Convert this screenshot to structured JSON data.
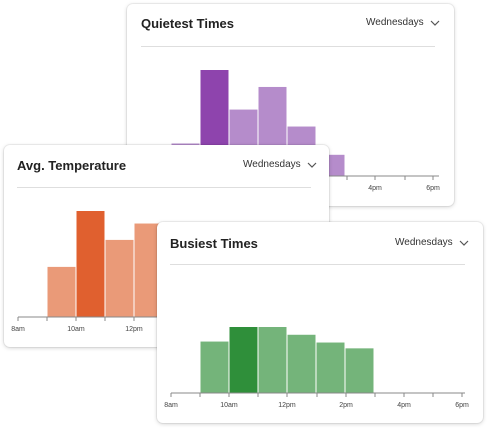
{
  "cards": {
    "quiet": {
      "title": "Quietest Times",
      "dropdown": "Wednesdays",
      "accent": "#8e44ad",
      "base": "#b58ccb"
    },
    "temp": {
      "title": "Avg. Temperature",
      "dropdown": "Wednesdays",
      "accent": "#e0602f",
      "base": "#ea9a78"
    },
    "busy": {
      "title": "Busiest Times",
      "dropdown": "Wednesdays",
      "accent": "#2f8f3a",
      "base": "#74b47a"
    }
  },
  "chart_data": [
    {
      "type": "bar",
      "id": "quiet",
      "categories": [
        "9am",
        "10am",
        "11am",
        "12pm",
        "1pm",
        "2pm"
      ],
      "values": [
        2.3,
        7.5,
        4.7,
        6.3,
        3.5,
        1.5
      ],
      "highlight_index": 1,
      "tick_labels": [
        "4pm",
        "6pm"
      ]
    },
    {
      "type": "bar",
      "id": "temp",
      "categories": [
        "9am",
        "10am",
        "11am",
        "12pm"
      ],
      "values": [
        5.2,
        11.0,
        8.0,
        9.7
      ],
      "highlight_index": 1,
      "tick_labels": [
        "8am",
        "10am",
        "12pm"
      ]
    },
    {
      "type": "bar",
      "id": "busy",
      "categories": [
        "9am",
        "10am",
        "11am",
        "12pm",
        "1pm",
        "2pm"
      ],
      "values": [
        5.3,
        6.8,
        6.8,
        6.0,
        5.2,
        4.6
      ],
      "highlight_index": 1,
      "tick_labels": [
        "8am",
        "10am",
        "12pm",
        "2pm",
        "4pm",
        "6pm"
      ]
    }
  ]
}
